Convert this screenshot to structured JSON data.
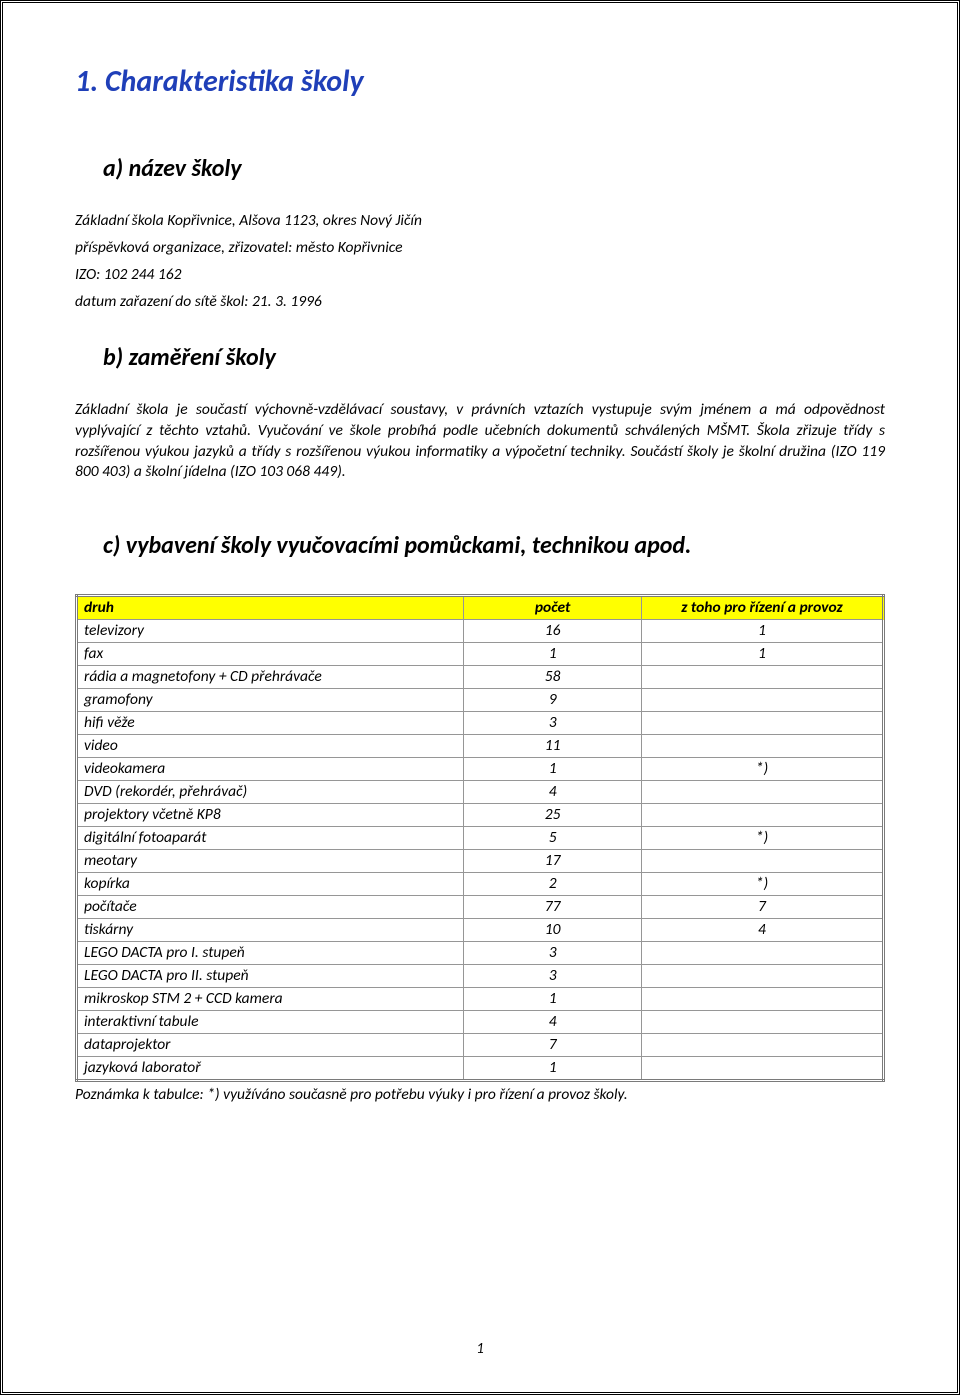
{
  "heading": "1. Charakteristika školy",
  "section_a": {
    "title": "a)   název školy",
    "lines": [
      "Základní škola Kopřivnice, Alšova 1123, okres Nový Jičín",
      "příspěvková organizace, zřizovatel: město Kopřivnice",
      "IZO: 102 244 162",
      "datum zařazení do sítě škol: 21. 3. 1996"
    ]
  },
  "section_b": {
    "title": "b)   zaměření školy",
    "paragraph": "Základní škola je součastí výchovně-vzdělávací soustavy, v právních vztazích vystupuje svým jménem a má odpovědnost vyplývající z těchto vztahů. Vyučování ve škole probíhá podle učebních dokumentů schválených MŠMT. Škola zřizuje třídy s rozšířenou výukou jazyků a třídy s rozšířenou výukou informatiky a výpočetní techniky. Součástí školy je školní družina (IZO 119 800 403) a školní jídelna (IZO 103 068 449)."
  },
  "section_c": {
    "title": "c)   vybavení školy vyučovacími pomůckami, technikou apod.",
    "table": {
      "headers": {
        "type": "druh",
        "count": "počet",
        "note": "z toho pro řízení a provoz"
      },
      "rows": [
        {
          "type": "televizory",
          "count": "16",
          "note": "1"
        },
        {
          "type": "fax",
          "count": "1",
          "note": "1"
        },
        {
          "type": "rádia a magnetofony + CD přehrávače",
          "count": "58",
          "note": ""
        },
        {
          "type": "gramofony",
          "count": "9",
          "note": ""
        },
        {
          "type": "hifi věže",
          "count": "3",
          "note": ""
        },
        {
          "type": "video",
          "count": "11",
          "note": ""
        },
        {
          "type": "videokamera",
          "count": "1",
          "note": "*)"
        },
        {
          "type": "DVD (rekordér, přehrávač)",
          "count": "4",
          "note": ""
        },
        {
          "type": "projektory včetně KP8",
          "count": "25",
          "note": ""
        },
        {
          "type": "digitální fotoaparát",
          "count": "5",
          "note": "*)"
        },
        {
          "type": "meotary",
          "count": "17",
          "note": ""
        },
        {
          "type": "kopírka",
          "count": "2",
          "note": "*)"
        },
        {
          "type": "počítače",
          "count": "77",
          "note": "7"
        },
        {
          "type": "tiskárny",
          "count": "10",
          "note": "4"
        },
        {
          "type": "LEGO DACTA pro I. stupeň",
          "count": "3",
          "note": ""
        },
        {
          "type": "LEGO DACTA pro II. stupeň",
          "count": "3",
          "note": ""
        },
        {
          "type": "mikroskop STM 2 + CCD kamera",
          "count": "1",
          "note": ""
        },
        {
          "type": "interaktivní tabule",
          "count": "4",
          "note": ""
        },
        {
          "type": "dataprojektor",
          "count": "7",
          "note": ""
        },
        {
          "type": "jazyková laboratoř",
          "count": "1",
          "note": ""
        }
      ],
      "footnote": "Poznámka k tabulce: *) využíváno současně pro potřebu výuky i pro řízení a provoz školy."
    }
  },
  "page_number": "1",
  "colors": {
    "heading": "#1f3fb8",
    "table_header_bg": "#ffff00",
    "table_border": "#7a7a7a",
    "cell_border": "#969696",
    "page_border": "#000000",
    "text": "#000000"
  }
}
